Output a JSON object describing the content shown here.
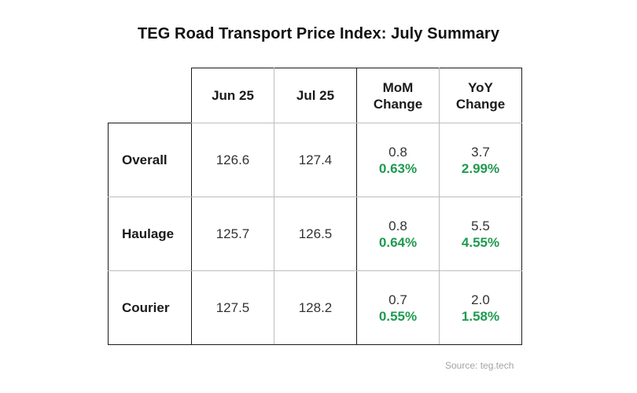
{
  "chart_data": {
    "type": "table",
    "title": "TEG Road Transport Price Index: July Summary",
    "columns": [
      "Jun 25",
      "Jul 25",
      "MoM Change",
      "YoY Change"
    ],
    "column_lines": [
      [
        "Jun 25"
      ],
      [
        "Jul 25"
      ],
      [
        "MoM",
        "Change"
      ],
      [
        "YoY",
        "Change"
      ]
    ],
    "rows": [
      {
        "label": "Overall",
        "jun": "126.6",
        "jul": "127.4",
        "mom": "0.8",
        "mom_pct": "0.63%",
        "yoy": "3.7",
        "yoy_pct": "2.99%"
      },
      {
        "label": "Haulage",
        "jun": "125.7",
        "jul": "126.5",
        "mom": "0.8",
        "mom_pct": "0.64%",
        "yoy": "5.5",
        "yoy_pct": "4.55%"
      },
      {
        "label": "Courier",
        "jun": "127.5",
        "jul": "128.2",
        "mom": "0.7",
        "mom_pct": "0.55%",
        "yoy": "2.0",
        "yoy_pct": "1.58%"
      }
    ],
    "source": "Source: teg.tech"
  },
  "colors": {
    "positive": "#1f9a4f",
    "border": "#1a1a1a",
    "grid": "#bdbdbd",
    "source_text": "#a3a3a3"
  }
}
